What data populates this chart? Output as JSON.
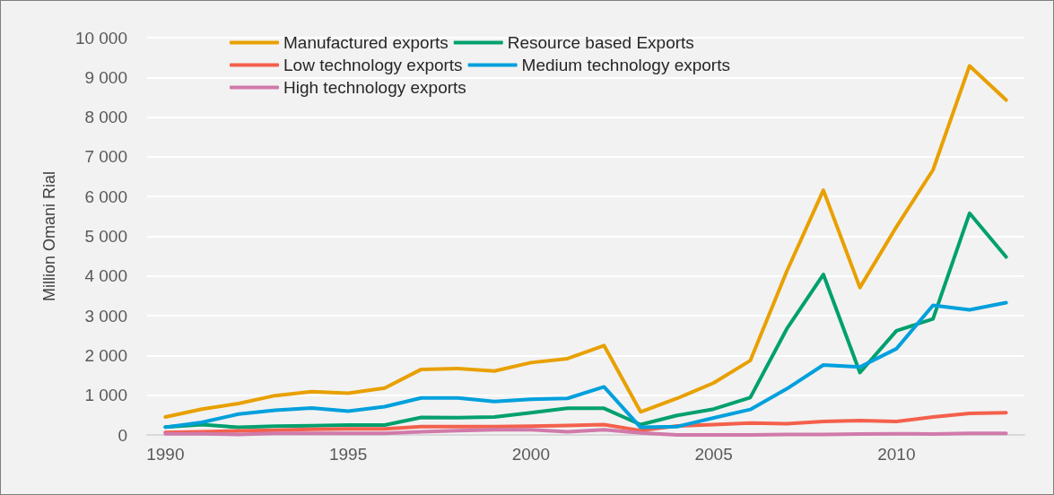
{
  "chart_data": {
    "type": "line",
    "ylabel": "Million Omani Rial",
    "categories": [
      "1990",
      null,
      null,
      null,
      null,
      "1995",
      null,
      null,
      null,
      null,
      "2000",
      null,
      null,
      null,
      null,
      "2005",
      null,
      null,
      null,
      null,
      "2010",
      null,
      null,
      null
    ],
    "series": [
      {
        "name": "Manufactured exports",
        "color": "#e8a000",
        "values": [
          450,
          650,
          790,
          990,
          1090,
          1050,
          1180,
          1650,
          1670,
          1610,
          1820,
          1920,
          2250,
          580,
          920,
          1310,
          1870,
          4120,
          6160,
          3710,
          5240,
          6670,
          9290,
          8430
        ]
      },
      {
        "name": "Resource based Exports",
        "color": "#00a06e",
        "values": [
          200,
          260,
          190,
          220,
          230,
          250,
          250,
          440,
          435,
          450,
          560,
          670,
          670,
          260,
          490,
          650,
          940,
          2670,
          4040,
          1570,
          2620,
          2920,
          5580,
          4480
        ]
      },
      {
        "name": "Low technology exports",
        "color": "#f4604c",
        "values": [
          60,
          80,
          100,
          120,
          140,
          150,
          150,
          210,
          210,
          210,
          220,
          235,
          260,
          110,
          225,
          260,
          300,
          280,
          340,
          360,
          340,
          450,
          540,
          560
        ]
      },
      {
        "name": "Medium technology exports",
        "color": "#00a0dc",
        "values": [
          195,
          315,
          525,
          620,
          675,
          600,
          710,
          930,
          930,
          840,
          900,
          920,
          1210,
          190,
          210,
          430,
          640,
          1160,
          1760,
          1710,
          2170,
          3260,
          3150,
          3330
        ]
      },
      {
        "name": "High technology exports",
        "color": "#d07aaa",
        "values": [
          30,
          30,
          10,
          40,
          40,
          40,
          40,
          80,
          110,
          130,
          130,
          80,
          130,
          50,
          0,
          0,
          0,
          10,
          10,
          20,
          30,
          20,
          40,
          40
        ]
      }
    ],
    "ylim": [
      0,
      10000
    ],
    "yticks": [
      0,
      {
        "value": 1000,
        "label": "1 000"
      },
      {
        "value": 2000,
        "label": "2 000"
      },
      {
        "value": 3000,
        "label": "3 000"
      },
      {
        "value": 4000,
        "label": "4 000"
      },
      {
        "value": 5000,
        "label": "5 000"
      },
      {
        "value": 6000,
        "label": "6 000"
      },
      {
        "value": 7000,
        "label": "7 000"
      },
      {
        "value": 8000,
        "label": "8 000"
      },
      {
        "value": 9000,
        "label": "9 000"
      },
      {
        "value": 10000,
        "label": "10 000"
      }
    ],
    "grid": "y",
    "legend": "top left",
    "marker": "none",
    "line_style": "solid"
  }
}
